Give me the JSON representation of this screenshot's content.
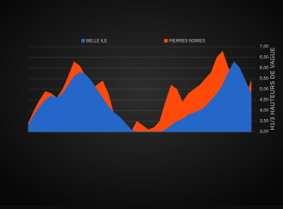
{
  "chart_data": {
    "type": "area",
    "y_label": "H1/3 HAUTEURS DE VAGUE",
    "series": [
      {
        "name": "PIERRES NOIRES",
        "color": "#ff4a0a",
        "values": [
          3.4,
          4.0,
          4.5,
          4.9,
          4.8,
          4.6,
          5.0,
          5.6,
          6.3,
          6.1,
          5.6,
          5.0,
          5.2,
          5.4,
          4.8,
          3.8,
          3.4,
          3.1,
          3.0,
          3.5,
          3.3,
          3.1,
          3.2,
          3.5,
          4.4,
          5.2,
          5.0,
          4.4,
          4.8,
          5.0,
          5.2,
          5.5,
          5.8,
          6.5,
          6.8,
          6.0,
          5.6,
          4.4,
          4.6,
          5.4
        ]
      },
      {
        "name": "BELLE ILE",
        "color": "#2467c8",
        "values": [
          3.3,
          3.8,
          4.2,
          4.5,
          4.7,
          4.6,
          4.8,
          5.2,
          5.6,
          5.8,
          5.7,
          5.4,
          5.0,
          4.6,
          4.2,
          3.9,
          3.7,
          3.4,
          3.1,
          3.0,
          3.0,
          3.0,
          3.0,
          3.0,
          3.1,
          3.3,
          3.5,
          3.6,
          3.8,
          3.9,
          4.0,
          4.2,
          4.5,
          4.8,
          5.2,
          5.8,
          6.3,
          6.0,
          5.4,
          4.8
        ]
      }
    ],
    "ylim": [
      3,
      7
    ],
    "yticks": [
      {
        "value": 3,
        "label": "3,00"
      },
      {
        "value": 3.5,
        "label": "3,50"
      },
      {
        "value": 4,
        "label": "4,00"
      },
      {
        "value": 4.5,
        "label": "4,50"
      },
      {
        "value": 5,
        "label": "5,00"
      },
      {
        "value": 5.5,
        "label": "5,50"
      },
      {
        "value": 6,
        "label": "6,00"
      },
      {
        "value": 6.5,
        "label": "6,50"
      },
      {
        "value": 7,
        "label": "7,00"
      }
    ],
    "grid": true
  }
}
